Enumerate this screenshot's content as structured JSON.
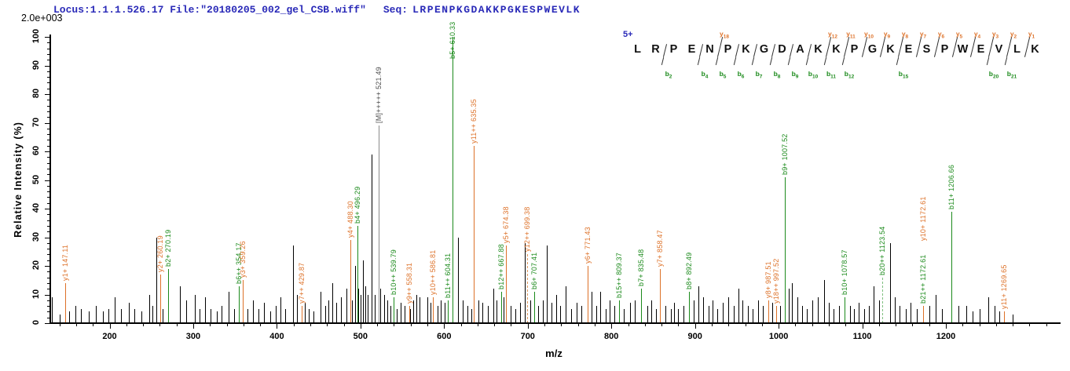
{
  "header": {
    "locus_text": "Locus:1.1.1.526.17 File:\"20180205_002_gel_CSB.wiff\"",
    "seq_label": "Seq:",
    "sequence": "LRPENPKGDAKKPGKESPWEVLK",
    "intensity_scale": "2.0e+003"
  },
  "colors": {
    "y_ion": "#DD7128",
    "b_ion": "#1B8A1B",
    "precursor": "#8a8a8a",
    "header_blue": "#2a2ab8",
    "axis": "#000000"
  },
  "sequence_panel": {
    "charge_label": "5+",
    "sequence": "LRPENPKGDAKKPGKESPWEVLK",
    "y_ions": [
      {
        "label": "y18",
        "series": "y",
        "num": 18,
        "gap": 5
      },
      {
        "label": "y12",
        "series": "y",
        "num": 12,
        "gap": 11
      },
      {
        "label": "y11",
        "series": "y",
        "num": 11,
        "gap": 12
      },
      {
        "label": "y10",
        "series": "y",
        "num": 10,
        "gap": 13
      },
      {
        "label": "y9",
        "series": "y",
        "num": 9,
        "gap": 14
      },
      {
        "label": "y8",
        "series": "y",
        "num": 8,
        "gap": 15
      },
      {
        "label": "y7",
        "series": "y",
        "num": 7,
        "gap": 16
      },
      {
        "label": "y6",
        "series": "y",
        "num": 6,
        "gap": 17
      },
      {
        "label": "y5",
        "series": "y",
        "num": 5,
        "gap": 18
      },
      {
        "label": "y4",
        "series": "y",
        "num": 4,
        "gap": 19
      },
      {
        "label": "y3",
        "series": "y",
        "num": 3,
        "gap": 20
      },
      {
        "label": "y2",
        "series": "y",
        "num": 2,
        "gap": 21
      },
      {
        "label": "y1",
        "series": "y",
        "num": 1,
        "gap": 22
      }
    ],
    "b_ions": [
      {
        "label": "b2",
        "series": "b",
        "num": 2,
        "gap": 2
      },
      {
        "label": "b4",
        "series": "b",
        "num": 4,
        "gap": 4
      },
      {
        "label": "b5",
        "series": "b",
        "num": 5,
        "gap": 5
      },
      {
        "label": "b6",
        "series": "b",
        "num": 6,
        "gap": 6
      },
      {
        "label": "b7",
        "series": "b",
        "num": 7,
        "gap": 7
      },
      {
        "label": "b8",
        "series": "b",
        "num": 8,
        "gap": 8
      },
      {
        "label": "b9",
        "series": "b",
        "num": 9,
        "gap": 9
      },
      {
        "label": "b10",
        "series": "b",
        "num": 10,
        "gap": 10
      },
      {
        "label": "b11",
        "series": "b",
        "num": 11,
        "gap": 11
      },
      {
        "label": "b12",
        "series": "b",
        "num": 12,
        "gap": 12
      },
      {
        "label": "b15",
        "series": "b",
        "num": 15,
        "gap": 15
      },
      {
        "label": "b20",
        "series": "b",
        "num": 20,
        "gap": 20
      },
      {
        "label": "b21",
        "series": "b",
        "num": 21,
        "gap": 21
      }
    ]
  },
  "chart_data": {
    "type": "bar",
    "subtype": "ms2-peptide-fragmentation-spectrum",
    "xlabel": "m/z",
    "ylabel": "Relative  Intensity (%)",
    "xlim": [
      130,
      1330
    ],
    "ylim": [
      0,
      100
    ],
    "x_major_ticks": [
      200,
      300,
      400,
      500,
      600,
      700,
      800,
      900,
      1000,
      1100,
      1200
    ],
    "x_minor_step": 20,
    "y_major_ticks": [
      0,
      10,
      20,
      30,
      40,
      50,
      60,
      70,
      80,
      90,
      100
    ],
    "y_minor_step": 2,
    "max_intensity_counts": "2.0e+003",
    "annotated_peaks": [
      {
        "label": "y1+ 147.11",
        "mz": 147.11,
        "intensity": 14,
        "ion": "y"
      },
      {
        "label": "y2+ 260.19",
        "mz": 260.19,
        "intensity": 17,
        "ion": "y"
      },
      {
        "label": "b2+ 270.19",
        "mz": 270.19,
        "intensity": 19,
        "ion": "b"
      },
      {
        "label": "b6++ 354.17",
        "mz": 354.17,
        "intensity": 13,
        "ion": "b"
      },
      {
        "label": "y3+ 359.26",
        "mz": 359.26,
        "intensity": 15,
        "ion": "y"
      },
      {
        "label": "y7++ 429.87",
        "mz": 429.87,
        "intensity": 6,
        "ion": "y"
      },
      {
        "label": "y4+ 488.30",
        "mz": 488.3,
        "intensity": 29,
        "ion": "y"
      },
      {
        "label": "b4+ 496.29",
        "mz": 496.29,
        "intensity": 34,
        "ion": "b"
      },
      {
        "label": "[M]+++++ 521.49",
        "mz": 521.49,
        "intensity": 69,
        "ion": "M"
      },
      {
        "label": "b10++ 539.79",
        "mz": 539.79,
        "intensity": 9,
        "ion": "b"
      },
      {
        "label": "y9++ 558.31",
        "mz": 558.31,
        "intensity": 6,
        "ion": "y"
      },
      {
        "label": "y10++ 586.81",
        "mz": 586.81,
        "intensity": 9,
        "ion": "y"
      },
      {
        "label": "b11++ 604.31",
        "mz": 604.31,
        "intensity": 8,
        "ion": "b"
      },
      {
        "label": "b5+ 610.33",
        "mz": 610.33,
        "intensity": 100,
        "ion": "b",
        "label_y": 75
      },
      {
        "label": "y11++ 635.35",
        "mz": 635.35,
        "intensity": 62,
        "ion": "y"
      },
      {
        "label": "b12++ 667.88",
        "mz": 667.88,
        "intensity": 11,
        "ion": "b"
      },
      {
        "label": "y5+ 674.38",
        "mz": 674.38,
        "intensity": 27,
        "ion": "y"
      },
      {
        "label": "y12++ 699.38",
        "mz": 699.38,
        "intensity": 24,
        "ion": "y",
        "dashed": true
      },
      {
        "label": "b6+ 707.41",
        "mz": 707.41,
        "intensity": 11,
        "ion": "b"
      },
      {
        "label": "y6+ 771.43",
        "mz": 771.43,
        "intensity": 20,
        "ion": "y"
      },
      {
        "label": "b15++ 809.37",
        "mz": 809.37,
        "intensity": 8,
        "ion": "b"
      },
      {
        "label": "b7+ 835.48",
        "mz": 835.48,
        "intensity": 12,
        "ion": "b"
      },
      {
        "label": "y7+ 858.47",
        "mz": 858.47,
        "intensity": 19,
        "ion": "y"
      },
      {
        "label": "b8+ 892.49",
        "mz": 892.49,
        "intensity": 11,
        "ion": "b"
      },
      {
        "label": "y8+ 987.51",
        "mz": 987.51,
        "intensity": 8,
        "ion": "y"
      },
      {
        "label": "y18++ 997.52",
        "mz": 997.52,
        "intensity": 6,
        "ion": "y"
      },
      {
        "label": "b9+ 1007.52",
        "mz": 1007.52,
        "intensity": 51,
        "ion": "b"
      },
      {
        "label": "b10+ 1078.57",
        "mz": 1078.57,
        "intensity": 9,
        "ion": "b"
      },
      {
        "label": "b20++ 1123.54",
        "mz": 1123.54,
        "intensity": 16,
        "ion": "b",
        "dashed": true
      },
      {
        "label": "b21++ 1172.61",
        "mz": 1172.61,
        "intensity": 6,
        "ion": "b"
      },
      {
        "label": "y10+ 1172.61",
        "mz": 1172.61,
        "intensity": 6,
        "ion": "y",
        "stack": true
      },
      {
        "label": "b11+ 1206.66",
        "mz": 1206.66,
        "intensity": 39,
        "ion": "b"
      },
      {
        "label": "y11+ 1269.65",
        "mz": 1269.65,
        "intensity": 4,
        "ion": "y"
      }
    ],
    "noise_peaks": [
      [
        131,
        9
      ],
      [
        140,
        3
      ],
      [
        152,
        4
      ],
      [
        159,
        6
      ],
      [
        166,
        5
      ],
      [
        175,
        4
      ],
      [
        184,
        6
      ],
      [
        192,
        4
      ],
      [
        199,
        5
      ],
      [
        206,
        9
      ],
      [
        214,
        5
      ],
      [
        223,
        7
      ],
      [
        230,
        5
      ],
      [
        238,
        4
      ],
      [
        247,
        10
      ],
      [
        251,
        6
      ],
      [
        256,
        30
      ],
      [
        263,
        5
      ],
      [
        284,
        13
      ],
      [
        292,
        8
      ],
      [
        302,
        10
      ],
      [
        308,
        5
      ],
      [
        314,
        9
      ],
      [
        321,
        5
      ],
      [
        328,
        4
      ],
      [
        334,
        6
      ],
      [
        342,
        11
      ],
      [
        349,
        5
      ],
      [
        365,
        5
      ],
      [
        371,
        8
      ],
      [
        378,
        5
      ],
      [
        385,
        7
      ],
      [
        392,
        4
      ],
      [
        399,
        6
      ],
      [
        404,
        9
      ],
      [
        410,
        5
      ],
      [
        419,
        27
      ],
      [
        424,
        10
      ],
      [
        433,
        7
      ],
      [
        438,
        5
      ],
      [
        444,
        4
      ],
      [
        452,
        11
      ],
      [
        458,
        6
      ],
      [
        462,
        8
      ],
      [
        466,
        14
      ],
      [
        471,
        7
      ],
      [
        477,
        9
      ],
      [
        483,
        12
      ],
      [
        490,
        8
      ],
      [
        494,
        20
      ],
      [
        497,
        12
      ],
      [
        500,
        10
      ],
      [
        503,
        22
      ],
      [
        506,
        13
      ],
      [
        509,
        10
      ],
      [
        513,
        59
      ],
      [
        517,
        10
      ],
      [
        524,
        12
      ],
      [
        528,
        10
      ],
      [
        532,
        8
      ],
      [
        536,
        6
      ],
      [
        543,
        5
      ],
      [
        548,
        7
      ],
      [
        553,
        6
      ],
      [
        559,
        5
      ],
      [
        563,
        8
      ],
      [
        567,
        10
      ],
      [
        571,
        9
      ],
      [
        580,
        9
      ],
      [
        584,
        7
      ],
      [
        592,
        6
      ],
      [
        596,
        8
      ],
      [
        601,
        7
      ],
      [
        617,
        30
      ],
      [
        622,
        8
      ],
      [
        628,
        6
      ],
      [
        633,
        5
      ],
      [
        641,
        8
      ],
      [
        646,
        7
      ],
      [
        652,
        6
      ],
      [
        659,
        12
      ],
      [
        663,
        8
      ],
      [
        671,
        9
      ],
      [
        680,
        6
      ],
      [
        685,
        5
      ],
      [
        691,
        7
      ],
      [
        696,
        28
      ],
      [
        703,
        8
      ],
      [
        712,
        6
      ],
      [
        718,
        8
      ],
      [
        723,
        27
      ],
      [
        728,
        7
      ],
      [
        734,
        10
      ],
      [
        739,
        6
      ],
      [
        745,
        13
      ],
      [
        752,
        5
      ],
      [
        758,
        7
      ],
      [
        764,
        6
      ],
      [
        776,
        11
      ],
      [
        782,
        6
      ],
      [
        787,
        11
      ],
      [
        793,
        5
      ],
      [
        798,
        8
      ],
      [
        804,
        6
      ],
      [
        815,
        5
      ],
      [
        822,
        7
      ],
      [
        828,
        8
      ],
      [
        843,
        6
      ],
      [
        848,
        8
      ],
      [
        853,
        5
      ],
      [
        865,
        6
      ],
      [
        871,
        5
      ],
      [
        875,
        7
      ],
      [
        880,
        5
      ],
      [
        886,
        6
      ],
      [
        898,
        8
      ],
      [
        904,
        13
      ],
      [
        910,
        9
      ],
      [
        916,
        6
      ],
      [
        921,
        8
      ],
      [
        927,
        5
      ],
      [
        933,
        7
      ],
      [
        940,
        9
      ],
      [
        946,
        6
      ],
      [
        952,
        12
      ],
      [
        957,
        8
      ],
      [
        963,
        6
      ],
      [
        969,
        5
      ],
      [
        975,
        8
      ],
      [
        981,
        6
      ],
      [
        992,
        7
      ],
      [
        1002,
        6
      ],
      [
        1012,
        12
      ],
      [
        1016,
        14
      ],
      [
        1022,
        9
      ],
      [
        1028,
        6
      ],
      [
        1034,
        5
      ],
      [
        1040,
        8
      ],
      [
        1047,
        9
      ],
      [
        1054,
        15
      ],
      [
        1060,
        7
      ],
      [
        1066,
        5
      ],
      [
        1072,
        6
      ],
      [
        1085,
        6
      ],
      [
        1090,
        5
      ],
      [
        1096,
        7
      ],
      [
        1102,
        5
      ],
      [
        1108,
        6
      ],
      [
        1114,
        13
      ],
      [
        1120,
        8
      ],
      [
        1133,
        28
      ],
      [
        1139,
        9
      ],
      [
        1145,
        6
      ],
      [
        1152,
        5
      ],
      [
        1158,
        7
      ],
      [
        1165,
        5
      ],
      [
        1180,
        6
      ],
      [
        1188,
        10
      ],
      [
        1195,
        5
      ],
      [
        1215,
        6
      ],
      [
        1224,
        6
      ],
      [
        1232,
        4
      ],
      [
        1240,
        5
      ],
      [
        1251,
        9
      ],
      [
        1258,
        6
      ],
      [
        1264,
        4
      ],
      [
        1280,
        3
      ]
    ]
  }
}
